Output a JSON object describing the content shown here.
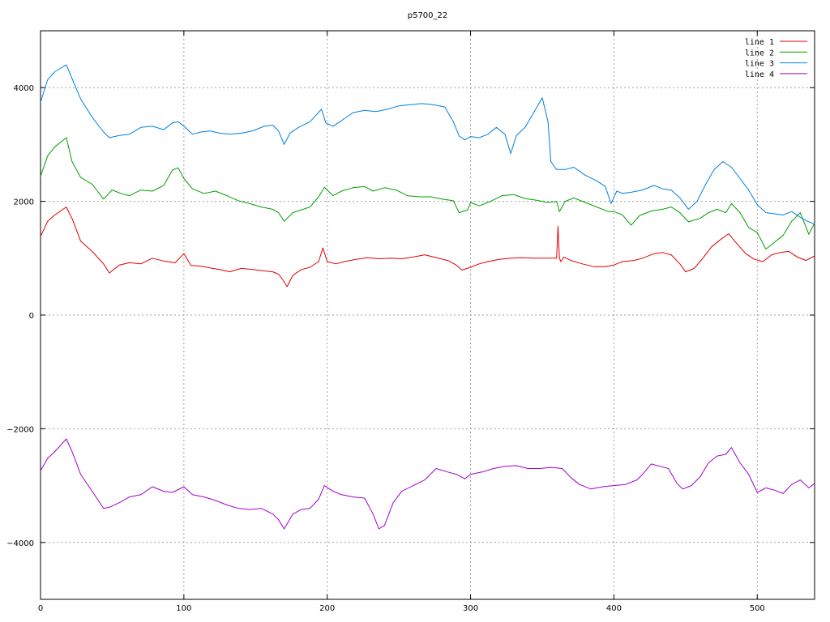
{
  "chart_data": {
    "type": "line",
    "title": "p5700_22",
    "xlabel": "",
    "ylabel": "",
    "xlim": [
      0,
      540
    ],
    "ylim": [
      -5000,
      5000
    ],
    "xticks": [
      0,
      100,
      200,
      300,
      400,
      500
    ],
    "yticks": [
      -4000,
      -2000,
      0,
      2000,
      4000
    ],
    "xtick_labels": [
      "0",
      "100",
      "200",
      "300",
      "400",
      "500"
    ],
    "ytick_labels": [
      "−4000",
      "−2000",
      "0",
      "2000",
      "4000"
    ],
    "grid": true,
    "legend_position": "top-right",
    "series": [
      {
        "name": "line 1",
        "color": "#e00000",
        "x": [
          0,
          5,
          10,
          18,
          22,
          28,
          36,
          44,
          48,
          55,
          62,
          70,
          78,
          86,
          94,
          100,
          105,
          112,
          118,
          125,
          132,
          140,
          148,
          155,
          162,
          166,
          169,
          172,
          176,
          182,
          188,
          194,
          197,
          200,
          206,
          212,
          220,
          228,
          236,
          244,
          252,
          260,
          268,
          276,
          284,
          290,
          294,
          300,
          306,
          312,
          320,
          328,
          336,
          344,
          350,
          356,
          360,
          361,
          362,
          363,
          365,
          370,
          378,
          386,
          394,
          400,
          406,
          414,
          420,
          428,
          434,
          440,
          446,
          450,
          456,
          462,
          468,
          474,
          480,
          486,
          492,
          498,
          504,
          510,
          516,
          522,
          528,
          534,
          540
        ],
        "y": [
          1380,
          1650,
          1760,
          1900,
          1700,
          1300,
          1120,
          900,
          740,
          880,
          920,
          900,
          1000,
          950,
          920,
          1080,
          870,
          860,
          830,
          800,
          760,
          820,
          800,
          780,
          760,
          720,
          620,
          500,
          700,
          800,
          840,
          940,
          1180,
          940,
          900,
          940,
          980,
          1010,
          990,
          1000,
          990,
          1020,
          1060,
          1010,
          960,
          880,
          790,
          840,
          900,
          940,
          980,
          1000,
          1010,
          1000,
          1000,
          1000,
          1000,
          1560,
          1000,
          940,
          1020,
          960,
          900,
          850,
          850,
          880,
          940,
          960,
          1000,
          1080,
          1100,
          1060,
          900,
          760,
          820,
          1000,
          1200,
          1320,
          1430,
          1250,
          1080,
          980,
          940,
          1060,
          1100,
          1120,
          1020,
          960,
          1040
        ]
      },
      {
        "name": "line 2",
        "color": "#00a000",
        "x": [
          0,
          5,
          10,
          18,
          22,
          28,
          36,
          44,
          50,
          56,
          62,
          70,
          78,
          86,
          92,
          96,
          100,
          106,
          114,
          122,
          130,
          138,
          146,
          154,
          162,
          166,
          170,
          176,
          182,
          188,
          194,
          198,
          204,
          210,
          218,
          226,
          232,
          240,
          248,
          256,
          264,
          272,
          280,
          288,
          292,
          298,
          300,
          306,
          314,
          322,
          330,
          338,
          346,
          354,
          360,
          362,
          366,
          372,
          380,
          388,
          396,
          400,
          406,
          412,
          418,
          426,
          434,
          440,
          446,
          452,
          460,
          466,
          472,
          478,
          482,
          488,
          494,
          500,
          506,
          512,
          518,
          524,
          530,
          536,
          540
        ],
        "y": [
          2440,
          2800,
          2960,
          3120,
          2700,
          2420,
          2300,
          2040,
          2200,
          2140,
          2100,
          2200,
          2180,
          2280,
          2550,
          2590,
          2400,
          2220,
          2140,
          2180,
          2100,
          2010,
          1960,
          1900,
          1860,
          1800,
          1650,
          1800,
          1850,
          1900,
          2080,
          2250,
          2100,
          2180,
          2240,
          2260,
          2180,
          2240,
          2200,
          2100,
          2080,
          2080,
          2040,
          2010,
          1800,
          1850,
          1980,
          1920,
          2000,
          2100,
          2120,
          2050,
          2020,
          1980,
          2000,
          1820,
          2000,
          2060,
          1980,
          1900,
          1820,
          1820,
          1760,
          1580,
          1750,
          1830,
          1860,
          1900,
          1800,
          1640,
          1700,
          1800,
          1860,
          1800,
          1960,
          1800,
          1540,
          1450,
          1160,
          1280,
          1400,
          1650,
          1800,
          1420,
          1620
        ]
      },
      {
        "name": "line 3",
        "color": "#0080e0",
        "x": [
          0,
          5,
          10,
          18,
          22,
          28,
          36,
          44,
          48,
          55,
          62,
          70,
          78,
          86,
          92,
          96,
          100,
          106,
          112,
          118,
          125,
          132,
          140,
          148,
          156,
          162,
          166,
          170,
          174,
          180,
          188,
          196,
          199,
          204,
          210,
          218,
          226,
          234,
          242,
          250,
          258,
          266,
          274,
          282,
          288,
          292,
          296,
          300,
          306,
          312,
          318,
          324,
          328,
          332,
          338,
          344,
          350,
          354,
          356,
          360,
          366,
          372,
          380,
          388,
          394,
          398,
          402,
          406,
          412,
          420,
          428,
          434,
          440,
          446,
          452,
          458,
          464,
          470,
          476,
          482,
          488,
          494,
          500,
          506,
          512,
          518,
          524,
          530,
          536,
          540
        ],
        "y": [
          3740,
          4140,
          4280,
          4400,
          4160,
          3800,
          3480,
          3220,
          3120,
          3160,
          3180,
          3300,
          3320,
          3260,
          3380,
          3400,
          3320,
          3180,
          3220,
          3240,
          3200,
          3180,
          3200,
          3240,
          3320,
          3340,
          3240,
          3000,
          3200,
          3300,
          3400,
          3620,
          3380,
          3320,
          3420,
          3560,
          3600,
          3580,
          3620,
          3680,
          3700,
          3720,
          3700,
          3660,
          3400,
          3150,
          3080,
          3140,
          3120,
          3180,
          3300,
          3180,
          2840,
          3160,
          3300,
          3560,
          3820,
          3400,
          2700,
          2560,
          2560,
          2600,
          2460,
          2360,
          2260,
          1960,
          2180,
          2140,
          2160,
          2200,
          2280,
          2220,
          2200,
          2060,
          1860,
          2000,
          2300,
          2560,
          2700,
          2600,
          2400,
          2200,
          1940,
          1800,
          1780,
          1760,
          1820,
          1720,
          1640,
          1600
        ]
      },
      {
        "name": "line 4",
        "color": "#a000d0",
        "x": [
          0,
          5,
          10,
          18,
          22,
          28,
          36,
          44,
          48,
          55,
          62,
          70,
          78,
          86,
          92,
          100,
          106,
          114,
          122,
          130,
          138,
          146,
          154,
          162,
          166,
          170,
          176,
          182,
          188,
          194,
          198,
          204,
          210,
          218,
          226,
          232,
          236,
          240,
          246,
          252,
          260,
          268,
          276,
          284,
          290,
          296,
          300,
          308,
          316,
          324,
          332,
          340,
          348,
          356,
          364,
          370,
          376,
          384,
          392,
          400,
          408,
          416,
          420,
          426,
          432,
          438,
          444,
          448,
          454,
          460,
          466,
          472,
          478,
          482,
          488,
          494,
          500,
          506,
          512,
          518,
          524,
          530,
          536,
          540
        ],
        "y": [
          -2740,
          -2520,
          -2400,
          -2180,
          -2400,
          -2800,
          -3100,
          -3400,
          -3380,
          -3300,
          -3200,
          -3160,
          -3020,
          -3100,
          -3120,
          -3020,
          -3160,
          -3200,
          -3260,
          -3340,
          -3400,
          -3420,
          -3400,
          -3500,
          -3600,
          -3760,
          -3500,
          -3420,
          -3400,
          -3240,
          -3000,
          -3100,
          -3160,
          -3200,
          -3220,
          -3500,
          -3760,
          -3700,
          -3300,
          -3100,
          -3000,
          -2900,
          -2700,
          -2760,
          -2800,
          -2880,
          -2800,
          -2760,
          -2700,
          -2660,
          -2650,
          -2700,
          -2700,
          -2680,
          -2700,
          -2860,
          -2980,
          -3060,
          -3020,
          -3000,
          -2980,
          -2900,
          -2800,
          -2620,
          -2660,
          -2700,
          -2960,
          -3060,
          -3000,
          -2850,
          -2600,
          -2480,
          -2450,
          -2330,
          -2600,
          -2800,
          -3120,
          -3040,
          -3080,
          -3140,
          -2980,
          -2900,
          -3040,
          -2960
        ]
      }
    ]
  }
}
